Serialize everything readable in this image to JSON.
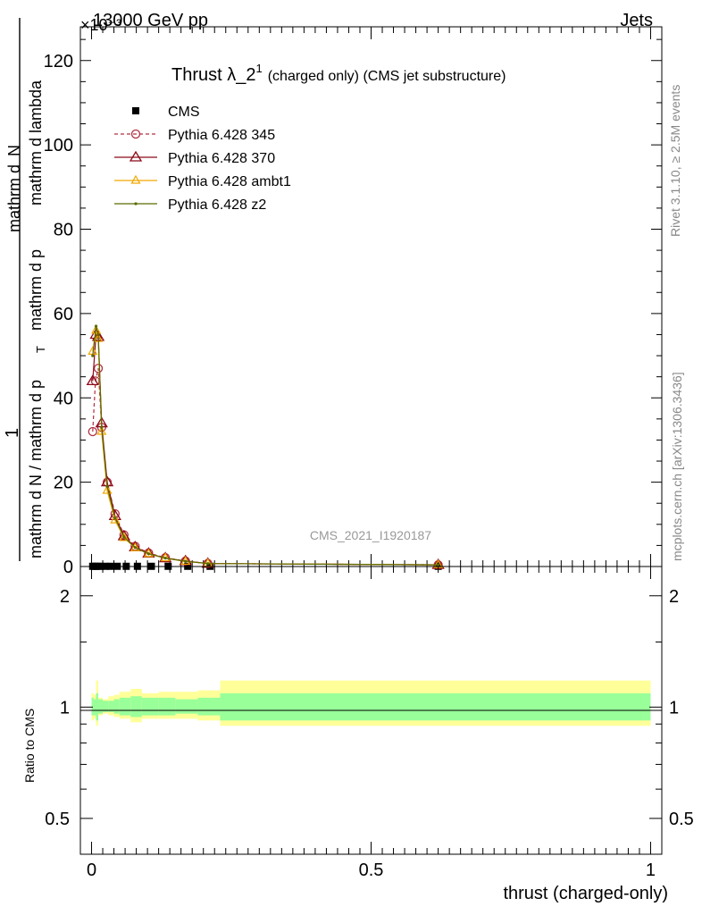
{
  "header": {
    "energy_label": "13000 GeV pp",
    "exponent_label": "×10⁻³",
    "category_label": "Jets"
  },
  "side_labels": {
    "rivet": "Rivet 3.1.10, ≥ 2.5M events",
    "mcplots": "mcplots.cern.ch [arXiv:1306.3436]"
  },
  "watermark": "CMS_2021_I1920187",
  "chart_data": [
    {
      "type": "line",
      "title": "Thrust λ_2¹",
      "title_main": "Thrust λ_2",
      "title_sup": "1",
      "title_suffix": "(charged only) (CMS jet substructure)",
      "ylabel_numerator": "1",
      "ylabel_denominator": "mathrm d N / mathrm d p_T mathrm d p_T mathrm d lambda",
      "ylabel_den_a": "mathrm d N / mathrm d p",
      "ylabel_den_b": "mathrm d p",
      "ylabel_den_c": "mathrm d lambda",
      "ylabel_num_text": "mathrm d²N",
      "ylabel_num_a": "mathrm d",
      "ylabel_num_b": "N",
      "ylim": [
        0,
        128
      ],
      "xlim": [
        -0.02,
        1.02
      ],
      "yticks": [
        0,
        20,
        40,
        60,
        80,
        100,
        120
      ],
      "legend_position": "top-left",
      "series": [
        {
          "name": "CMS",
          "marker": "square",
          "color": "#000000",
          "x": [
            0.002,
            0.006,
            0.01,
            0.016,
            0.024,
            0.034,
            0.046,
            0.062,
            0.082,
            0.107,
            0.137,
            0.172,
            0.212,
            0.62
          ],
          "y": [
            0.05,
            0.05,
            0.05,
            0.05,
            0.05,
            0.05,
            0.05,
            0.05,
            0.05,
            0.05,
            0.05,
            0.05,
            0.05,
            0.05
          ]
        },
        {
          "name": "Pythia 6.428 345",
          "marker": "circle",
          "dashed": true,
          "color": "#b03040",
          "x": [
            0.002,
            0.007,
            0.012,
            0.018,
            0.028,
            0.042,
            0.058,
            0.078,
            0.102,
            0.132,
            0.168,
            0.208,
            0.62
          ],
          "y": [
            32,
            44,
            47,
            33,
            20,
            12.5,
            7.5,
            4.8,
            3.2,
            2.1,
            1.3,
            0.7,
            0.4
          ]
        },
        {
          "name": "Pythia 6.428 370",
          "marker": "triangle",
          "color": "#8b0a1a",
          "x": [
            0.002,
            0.008,
            0.012,
            0.018,
            0.028,
            0.042,
            0.058,
            0.078,
            0.102,
            0.132,
            0.168,
            0.208,
            0.62
          ],
          "y": [
            44,
            55,
            54.5,
            34,
            20,
            12,
            7.2,
            4.6,
            3.1,
            2.0,
            1.3,
            0.7,
            0.4
          ]
        },
        {
          "name": "Pythia 6.428 ambt1",
          "marker": "triangle-small",
          "color": "#f0a800",
          "x": [
            0.002,
            0.008,
            0.012,
            0.018,
            0.028,
            0.042,
            0.058,
            0.078,
            0.102,
            0.132,
            0.168,
            0.208,
            0.62
          ],
          "y": [
            51,
            56,
            54,
            32,
            18,
            11,
            6.8,
            4.4,
            3.0,
            2.0,
            1.2,
            0.7,
            0.4
          ]
        },
        {
          "name": "Pythia 6.428 z2",
          "marker": "dot",
          "color": "#5a6a00",
          "x": [
            0.002,
            0.008,
            0.012,
            0.018,
            0.028,
            0.042,
            0.058,
            0.078,
            0.102,
            0.132,
            0.168,
            0.208,
            0.62
          ],
          "y": [
            50,
            57,
            55,
            33,
            19,
            11.5,
            7.0,
            4.5,
            3.0,
            2.0,
            1.25,
            0.7,
            0.4
          ]
        }
      ]
    },
    {
      "type": "area",
      "ylabel": "Ratio to CMS",
      "xlabel": "thrust (charged-only)",
      "xlim": [
        -0.02,
        1.02
      ],
      "ylim": [
        0.4,
        2.4
      ],
      "log_scale_y": true,
      "xticks": [
        0,
        0.5,
        1
      ],
      "xtick_labels": [
        "0",
        "0.5",
        "1"
      ],
      "yticks": [
        0.5,
        1,
        2
      ],
      "ytick_labels": [
        "0.5",
        "1",
        "2"
      ],
      "bands": {
        "edges": [
          0,
          0.004,
          0.008,
          0.012,
          0.02,
          0.03,
          0.04,
          0.05,
          0.07,
          0.09,
          0.12,
          0.15,
          0.19,
          0.23,
          1.0
        ],
        "stat_up": [
          1.06,
          1.05,
          1.09,
          1.05,
          1.04,
          1.04,
          1.05,
          1.06,
          1.07,
          1.06,
          1.06,
          1.05,
          1.06,
          1.09
        ],
        "stat_down": [
          0.95,
          0.95,
          0.92,
          0.96,
          0.97,
          0.97,
          0.96,
          0.95,
          0.94,
          0.95,
          0.95,
          0.96,
          0.95,
          0.92
        ],
        "total_up": [
          1.09,
          1.08,
          1.18,
          1.06,
          1.05,
          1.07,
          1.08,
          1.1,
          1.12,
          1.09,
          1.1,
          1.1,
          1.11,
          1.18
        ],
        "total_down": [
          0.92,
          0.93,
          0.89,
          0.95,
          0.96,
          0.95,
          0.94,
          0.93,
          0.91,
          0.93,
          0.93,
          0.93,
          0.92,
          0.89
        ]
      },
      "stat_band_color": "#99ff99",
      "total_band_color": "#ffff99"
    }
  ]
}
